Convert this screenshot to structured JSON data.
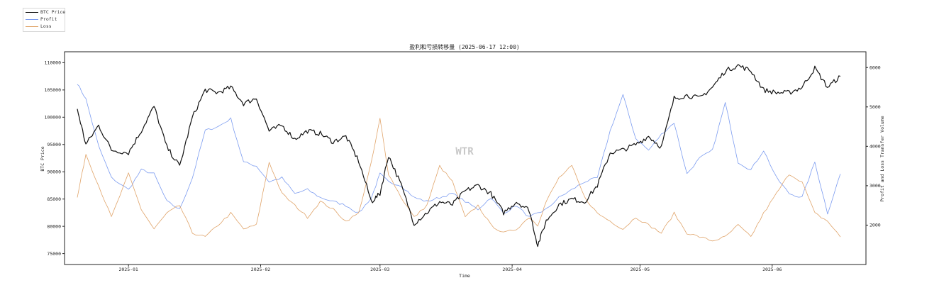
{
  "chart_data": {
    "type": "line",
    "title": "盈利和亏损转移量 (2025-06-17 12:00)",
    "xlabel": "Time",
    "ylabel_left": "BTC Price",
    "ylabel_right": "Profit and Loss Transfer Volume",
    "watermark": "WTR",
    "x_range": [
      "2024-12-17",
      "2025-06-23"
    ],
    "y_left_range": [
      73000,
      112000
    ],
    "y_right_range": [
      1000,
      6400
    ],
    "x_ticks": [
      "2025-01",
      "2025-02",
      "2025-03",
      "2025-04",
      "2025-05",
      "2025-06"
    ],
    "x_tick_dates": [
      "2025-01-01",
      "2025-02-01",
      "2025-03-01",
      "2025-04-01",
      "2025-05-01",
      "2025-06-01"
    ],
    "y_left_ticks": [
      75000,
      80000,
      85000,
      90000,
      95000,
      100000,
      105000,
      110000
    ],
    "y_right_ticks": [
      2000,
      3000,
      4000,
      5000,
      6000
    ],
    "grid": false,
    "legend_position": "top-left",
    "series": [
      {
        "name": "BTC Price",
        "axis": "left",
        "color": "#111111",
        "x": [
          "2024-12-20",
          "2024-12-22",
          "2024-12-25",
          "2024-12-28",
          "2025-01-01",
          "2025-01-04",
          "2025-01-07",
          "2025-01-10",
          "2025-01-13",
          "2025-01-16",
          "2025-01-19",
          "2025-01-22",
          "2025-01-25",
          "2025-01-28",
          "2025-01-31",
          "2025-02-03",
          "2025-02-06",
          "2025-02-09",
          "2025-02-12",
          "2025-02-15",
          "2025-02-18",
          "2025-02-21",
          "2025-02-24",
          "2025-02-27",
          "2025-03-01",
          "2025-03-03",
          "2025-03-06",
          "2025-03-09",
          "2025-03-12",
          "2025-03-15",
          "2025-03-18",
          "2025-03-21",
          "2025-03-24",
          "2025-03-27",
          "2025-03-30",
          "2025-04-02",
          "2025-04-05",
          "2025-04-07",
          "2025-04-09",
          "2025-04-12",
          "2025-04-15",
          "2025-04-18",
          "2025-04-21",
          "2025-04-24",
          "2025-04-27",
          "2025-04-30",
          "2025-05-03",
          "2025-05-06",
          "2025-05-09",
          "2025-05-12",
          "2025-05-15",
          "2025-05-18",
          "2025-05-21",
          "2025-05-24",
          "2025-05-27",
          "2025-05-30",
          "2025-06-02",
          "2025-06-05",
          "2025-06-08",
          "2025-06-11",
          "2025-06-14",
          "2025-06-17"
        ],
        "values": [
          101500,
          95000,
          98500,
          94000,
          93500,
          97500,
          102000,
          94500,
          91000,
          100000,
          105000,
          104500,
          105500,
          102500,
          103500,
          97500,
          98500,
          96000,
          97500,
          97000,
          95500,
          96500,
          92000,
          84500,
          86000,
          93000,
          87500,
          80500,
          82500,
          84500,
          84000,
          86500,
          87500,
          86000,
          82500,
          84500,
          83000,
          76500,
          81000,
          84000,
          85000,
          84500,
          87500,
          93500,
          94000,
          95000,
          96500,
          94500,
          103500,
          104000,
          103500,
          105500,
          108500,
          109500,
          108500,
          105000,
          104500,
          104500,
          105500,
          109000,
          105500,
          107500
        ]
      },
      {
        "name": "Profit",
        "axis": "right",
        "color": "#7c9cf0",
        "x": [
          "2024-12-20",
          "2024-12-22",
          "2024-12-25",
          "2024-12-28",
          "2025-01-01",
          "2025-01-04",
          "2025-01-07",
          "2025-01-10",
          "2025-01-13",
          "2025-01-16",
          "2025-01-19",
          "2025-01-22",
          "2025-01-25",
          "2025-01-28",
          "2025-01-31",
          "2025-02-03",
          "2025-02-06",
          "2025-02-09",
          "2025-02-12",
          "2025-02-15",
          "2025-02-18",
          "2025-02-21",
          "2025-02-24",
          "2025-02-27",
          "2025-03-01",
          "2025-03-03",
          "2025-03-06",
          "2025-03-09",
          "2025-03-12",
          "2025-03-15",
          "2025-03-18",
          "2025-03-21",
          "2025-03-24",
          "2025-03-27",
          "2025-03-30",
          "2025-04-02",
          "2025-04-05",
          "2025-04-07",
          "2025-04-09",
          "2025-04-12",
          "2025-04-15",
          "2025-04-18",
          "2025-04-21",
          "2025-04-24",
          "2025-04-27",
          "2025-04-30",
          "2025-05-03",
          "2025-05-06",
          "2025-05-09",
          "2025-05-12",
          "2025-05-15",
          "2025-05-18",
          "2025-05-21",
          "2025-05-24",
          "2025-05-27",
          "2025-05-30",
          "2025-06-02",
          "2025-06-05",
          "2025-06-08",
          "2025-06-11",
          "2025-06-14",
          "2025-06-17"
        ],
        "values": [
          5600,
          5200,
          4000,
          3200,
          2900,
          3400,
          3300,
          2600,
          2400,
          3200,
          4400,
          4500,
          4700,
          3600,
          3500,
          3100,
          3200,
          2800,
          2900,
          2700,
          2600,
          2500,
          2300,
          2700,
          3300,
          3100,
          3000,
          2700,
          2600,
          2700,
          2800,
          2600,
          2400,
          2700,
          2300,
          2500,
          2200,
          2300,
          2400,
          2700,
          2900,
          3100,
          3200,
          4400,
          5300,
          4200,
          3900,
          4300,
          4600,
          3300,
          3700,
          3900,
          5100,
          3600,
          3400,
          3900,
          3200,
          2800,
          2700,
          3600,
          2300,
          3300
        ]
      },
      {
        "name": "Loss",
        "axis": "right",
        "color": "#e0a46a",
        "x": [
          "2024-12-20",
          "2024-12-22",
          "2024-12-25",
          "2024-12-28",
          "2025-01-01",
          "2025-01-04",
          "2025-01-07",
          "2025-01-10",
          "2025-01-13",
          "2025-01-16",
          "2025-01-19",
          "2025-01-22",
          "2025-01-25",
          "2025-01-28",
          "2025-01-31",
          "2025-02-03",
          "2025-02-06",
          "2025-02-09",
          "2025-02-12",
          "2025-02-15",
          "2025-02-18",
          "2025-02-21",
          "2025-02-24",
          "2025-02-27",
          "2025-03-01",
          "2025-03-03",
          "2025-03-06",
          "2025-03-09",
          "2025-03-12",
          "2025-03-15",
          "2025-03-18",
          "2025-03-21",
          "2025-03-24",
          "2025-03-27",
          "2025-03-30",
          "2025-04-02",
          "2025-04-05",
          "2025-04-07",
          "2025-04-09",
          "2025-04-12",
          "2025-04-15",
          "2025-04-18",
          "2025-04-21",
          "2025-04-24",
          "2025-04-27",
          "2025-04-30",
          "2025-05-03",
          "2025-05-06",
          "2025-05-09",
          "2025-05-12",
          "2025-05-15",
          "2025-05-18",
          "2025-05-21",
          "2025-05-24",
          "2025-05-27",
          "2025-05-30",
          "2025-06-02",
          "2025-06-05",
          "2025-06-08",
          "2025-06-11",
          "2025-06-14",
          "2025-06-17"
        ],
        "values": [
          2700,
          3800,
          3000,
          2200,
          3300,
          2400,
          1900,
          2300,
          2500,
          1800,
          1700,
          2000,
          2300,
          1900,
          2000,
          3600,
          2800,
          2500,
          2200,
          2600,
          2400,
          2100,
          2300,
          3600,
          4700,
          3300,
          2700,
          2200,
          2500,
          3500,
          3100,
          2200,
          2500,
          2000,
          1800,
          1900,
          2200,
          2000,
          2600,
          3200,
          3500,
          2700,
          2300,
          2100,
          1900,
          2200,
          2000,
          1800,
          2300,
          1800,
          1700,
          1600,
          1700,
          2000,
          1700,
          2300,
          2800,
          3300,
          3100,
          2300,
          2100,
          1700
        ]
      }
    ]
  }
}
